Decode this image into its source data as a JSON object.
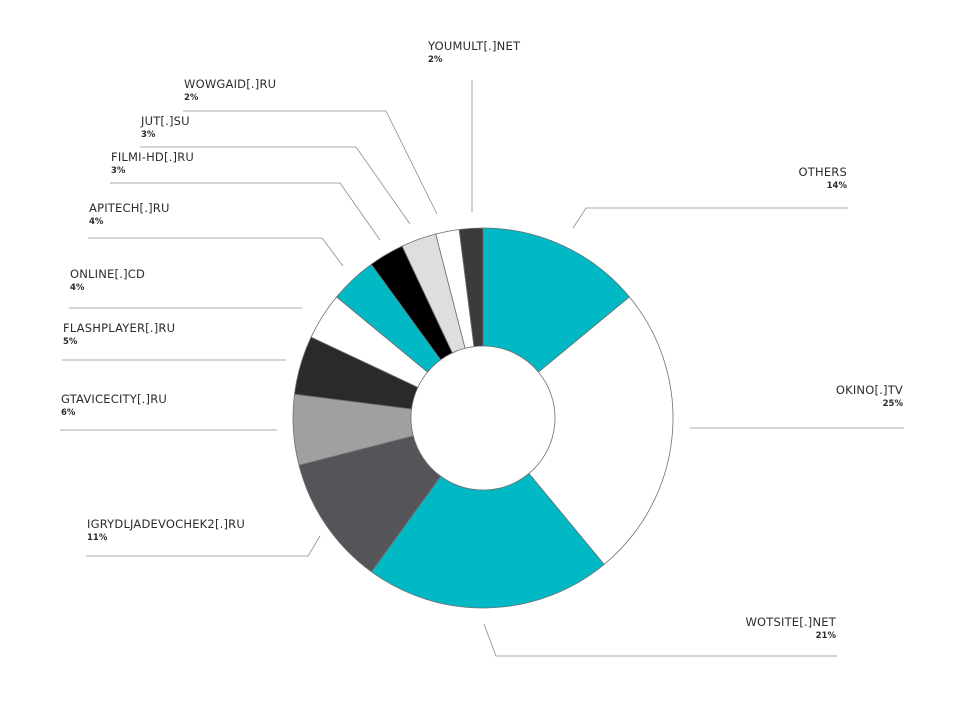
{
  "chart_data": {
    "type": "pie",
    "style": "donut",
    "slices": [
      {
        "label": "OTHERS",
        "value": 14,
        "pct_label": "14%",
        "color": "#00b9c4"
      },
      {
        "label": "OKINO[.]TV",
        "value": 25,
        "pct_label": "25%",
        "color": "#ffffff"
      },
      {
        "label": "WOTSITE[.]NET",
        "value": 21,
        "pct_label": "21%",
        "color": "#00b9c4"
      },
      {
        "label": "IGRYDLJADEVOCHEK2[.]RU",
        "value": 11,
        "pct_label": "11%",
        "color": "#555559"
      },
      {
        "label": "GTAVICECITY[.]RU",
        "value": 6,
        "pct_label": "6%",
        "color": "#a0a0a0"
      },
      {
        "label": "FLASHPLAYER[.]RU",
        "value": 5,
        "pct_label": "5%",
        "color": "#2a2a2a"
      },
      {
        "label": "ONLINE[.]CD",
        "value": 4,
        "pct_label": "4%",
        "color": "#ffffff"
      },
      {
        "label": "APITECH[.]RU",
        "value": 4,
        "pct_label": "4%",
        "color": "#00b9c4"
      },
      {
        "label": "FILMI-HD[.]RU",
        "value": 3,
        "pct_label": "3%",
        "color": "#000000"
      },
      {
        "label": "JUT[.]SU",
        "value": 3,
        "pct_label": "3%",
        "color": "#dedede"
      },
      {
        "label": "WOWGAID[.]RU",
        "value": 2,
        "pct_label": "2%",
        "color": "#ffffff"
      },
      {
        "label": "YOUMULT[.]NET",
        "value": 2,
        "pct_label": "2%",
        "color": "#3b3b3d"
      }
    ]
  }
}
